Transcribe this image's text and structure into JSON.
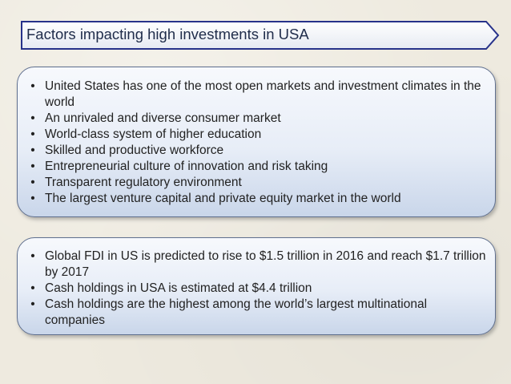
{
  "slide": {
    "title": "Factors impacting high investments in USA",
    "colors": {
      "title_bar_fill": "#f2f4f8",
      "title_bar_border": "#27328a",
      "title_text": "#1f2c4a",
      "panel_border": "#5f6f8e",
      "body_text": "#222222"
    },
    "panel_1": {
      "bullet_glyph": "•",
      "items": [
        "United States has one of the most open markets and investment climates in the world",
        "An unrivaled and diverse consumer market",
        "World-class system of higher education",
        "Skilled and productive workforce",
        "Entrepreneurial culture of innovation and risk taking",
        "Transparent regulatory environment",
        "The largest venture capital and private equity market in the world"
      ]
    },
    "panel_2": {
      "bullet_glyph": "•",
      "items": [
        "Global FDI in US is predicted to rise to $1.5 trillion in 2016 and reach $1.7 trillion by 2017",
        "Cash holdings in USA is estimated at $4.4 trillion",
        "Cash holdings are the highest among the world’s largest multinational companies"
      ]
    }
  }
}
